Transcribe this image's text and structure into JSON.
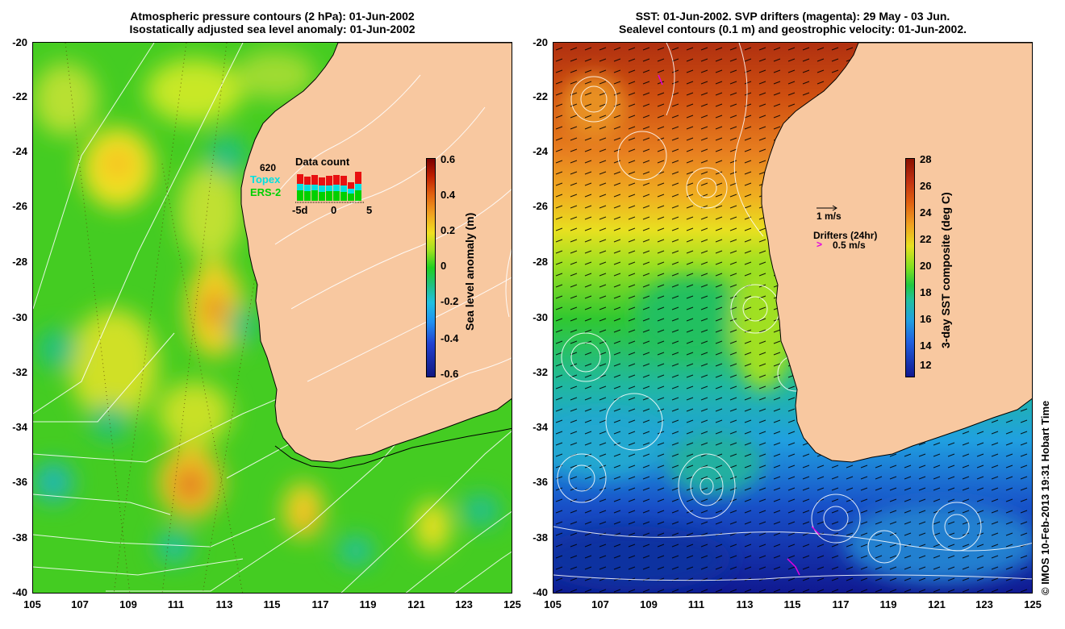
{
  "left_panel": {
    "title_line1": "Atmospheric pressure contours (2 hPa): 01-Jun-2002",
    "title_line2": "Isostatically adjusted sea level anomaly: 01-Jun-2002",
    "colorbar_label": "Sea level anomaly (m)",
    "colorbar_ticks": [
      "0.6",
      "0.4",
      "0.2",
      "0",
      "-0.2",
      "-0.4",
      "-0.6"
    ],
    "inset": {
      "title": "Data count",
      "count_label": "620",
      "series": [
        "Topex",
        "ERS-2"
      ],
      "series_colors": [
        "#00e0e0",
        "#00d000"
      ],
      "x_ticks": [
        "-5d",
        "0",
        "5"
      ]
    }
  },
  "right_panel": {
    "title_line1": "SST: 01-Jun-2002. SVP drifters (magenta): 29 May - 03 Jun.",
    "title_line2": "Sealevel contours (0.1 m) and geostrophic velocity: 01-Jun-2002.",
    "colorbar_label": "3-day SST composite (deg C)",
    "colorbar_ticks": [
      "28",
      "26",
      "24",
      "22",
      "20",
      "18",
      "16",
      "14",
      "12"
    ],
    "velocity_scale_label": "1 m/s",
    "drifters_title": "Drifters (24hr)",
    "drifters_scale_label": "0.5 m/s"
  },
  "axes": {
    "y_ticks": [
      "-20",
      "-22",
      "-24",
      "-26",
      "-28",
      "-30",
      "-32",
      "-34",
      "-36",
      "-38",
      "-40"
    ],
    "x_ticks": [
      "105",
      "107",
      "109",
      "111",
      "113",
      "115",
      "117",
      "119",
      "121",
      "123",
      "125"
    ]
  },
  "credit": "© IMOS 10-Feb-2013 19:31 Hobart Time",
  "colors": {
    "land": "#f8c8a0",
    "magenta": "#e000e0"
  }
}
